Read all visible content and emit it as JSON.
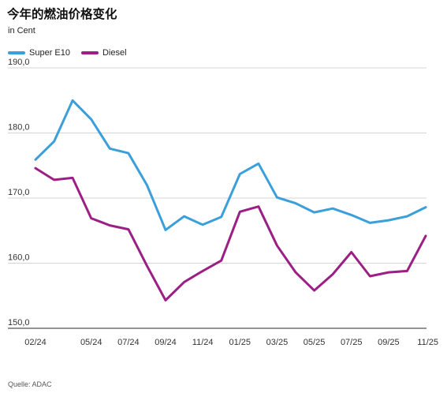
{
  "header": {
    "title": "今年的燃油价格变化",
    "subtitle": "in Cent"
  },
  "footer": {
    "source": "Quelle: ADAC"
  },
  "chart_data": {
    "type": "line",
    "title": "今年的燃油价格变化",
    "ylabel": "in Cent",
    "ylim": [
      150,
      190
    ],
    "y_ticks": [
      150,
      160,
      170,
      180,
      190
    ],
    "y_tick_labels": [
      "150,0",
      "160,0",
      "170,0",
      "180,0",
      "190,0"
    ],
    "x_tick_labels": [
      "02/24",
      "05/24",
      "07/24",
      "09/24",
      "11/24",
      "01/25",
      "03/25",
      "05/25",
      "07/25",
      "09/25",
      "11/25"
    ],
    "x_tick_indices": [
      0,
      3,
      5,
      7,
      9,
      11,
      13,
      15,
      17,
      19,
      21
    ],
    "legend_position": "top-left",
    "grid": "horizontal",
    "series": [
      {
        "name": "Super E10",
        "color": "#3a9fdb",
        "values": [
          175.9,
          178.7,
          185.0,
          182.1,
          177.6,
          176.9,
          172.0,
          165.1,
          167.2,
          165.9,
          167.1,
          173.7,
          175.3,
          170.1,
          169.2,
          167.8,
          168.4,
          167.4,
          166.2,
          166.6,
          167.2,
          168.6
        ]
      },
      {
        "name": "Diesel",
        "color": "#9c1f85",
        "values": [
          174.6,
          172.8,
          173.1,
          166.9,
          165.8,
          165.2,
          159.6,
          154.3,
          157.1,
          158.8,
          160.4,
          167.9,
          168.7,
          162.7,
          158.6,
          155.8,
          158.3,
          161.7,
          158.0,
          158.6,
          158.8,
          164.2
        ]
      }
    ]
  }
}
